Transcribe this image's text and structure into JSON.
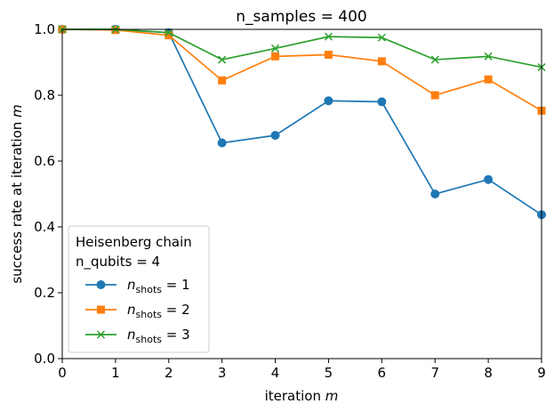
{
  "chart_data": {
    "type": "line",
    "title": "n_samples = 400",
    "xlabel": {
      "text": "iteration ",
      "var": "m"
    },
    "ylabel": {
      "text": "success rate at iteration ",
      "var": "m"
    },
    "xlim": [
      0,
      9
    ],
    "ylim": [
      0,
      1
    ],
    "xticks": [
      "0",
      "1",
      "2",
      "3",
      "4",
      "5",
      "6",
      "7",
      "8",
      "9"
    ],
    "yticks": [
      "0.0",
      "0.2",
      "0.4",
      "0.6",
      "0.8",
      "1.0"
    ],
    "grid": false,
    "legend": {
      "placement": "lower-left",
      "title_line1": "Heisenberg chain",
      "title_line2": "n_qubits = 4"
    },
    "x": [
      0,
      1,
      2,
      3,
      4,
      5,
      6,
      7,
      8,
      9
    ],
    "series": [
      {
        "name": "n_shots = 1",
        "label_sub": "shots",
        "label_eq": " = 1",
        "color": "#1f77b4",
        "marker": "circle",
        "values": [
          1.0,
          1.0,
          0.99,
          0.655,
          0.678,
          0.783,
          0.78,
          0.5,
          0.544,
          0.437
        ]
      },
      {
        "name": "n_shots = 2",
        "label_sub": "shots",
        "label_eq": " = 2",
        "color": "#ff7f0e",
        "marker": "square",
        "values": [
          1.0,
          0.998,
          0.982,
          0.845,
          0.918,
          0.923,
          0.903,
          0.8,
          0.848,
          0.753
        ]
      },
      {
        "name": "n_shots = 3",
        "label_sub": "shots",
        "label_eq": " = 3",
        "color": "#2ca02c",
        "marker": "x",
        "values": [
          1.0,
          1.0,
          0.99,
          0.908,
          0.942,
          0.978,
          0.975,
          0.908,
          0.918,
          0.885
        ]
      }
    ]
  }
}
